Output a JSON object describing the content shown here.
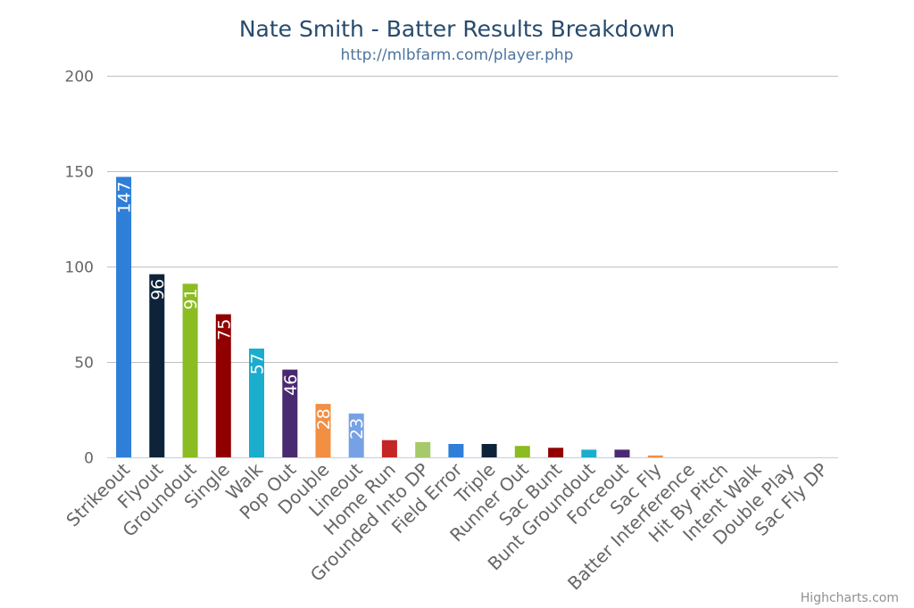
{
  "chart_data": {
    "type": "bar",
    "title": "Nate Smith - Batter Results Breakdown",
    "subtitle": "http://mlbfarm.com/player.php",
    "credits": "Highcharts.com",
    "ylim": [
      0,
      200
    ],
    "yticks": [
      0,
      50,
      100,
      150,
      200
    ],
    "grid": true,
    "categories": [
      "Strikeout",
      "Flyout",
      "Groundout",
      "Single",
      "Walk",
      "Pop Out",
      "Double",
      "Lineout",
      "Home Run",
      "Grounded Into DP",
      "Field Error",
      "Triple",
      "Runner Out",
      "Sac Bunt",
      "Bunt Groundout",
      "Forceout",
      "Sac Fly",
      "Batter Interference",
      "Hit By Pitch",
      "Intent Walk",
      "Double Play",
      "Sac Fly DP"
    ],
    "values": [
      147,
      96,
      91,
      75,
      57,
      46,
      28,
      23,
      9,
      8,
      7,
      7,
      6,
      5,
      4,
      4,
      1,
      0,
      0,
      0,
      0,
      0
    ],
    "data_labels": [
      "147",
      "96",
      "91",
      "75",
      "57",
      "46",
      "28",
      "23",
      "",
      "",
      "",
      "",
      "",
      "",
      "",
      "",
      "",
      "",
      "",
      "",
      "",
      ""
    ],
    "colors": [
      "#2f7ed8",
      "#0d233a",
      "#8bbc21",
      "#910000",
      "#1aadce",
      "#492970",
      "#f28f43",
      "#77a1e5",
      "#c42525",
      "#a6c96a",
      "#2f7ed8",
      "#0d233a",
      "#8bbc21",
      "#910000",
      "#1aadce",
      "#492970",
      "#f28f43",
      "#77a1e5",
      "#c42525",
      "#a6c96a",
      "#2f7ed8",
      "#0d233a"
    ]
  }
}
